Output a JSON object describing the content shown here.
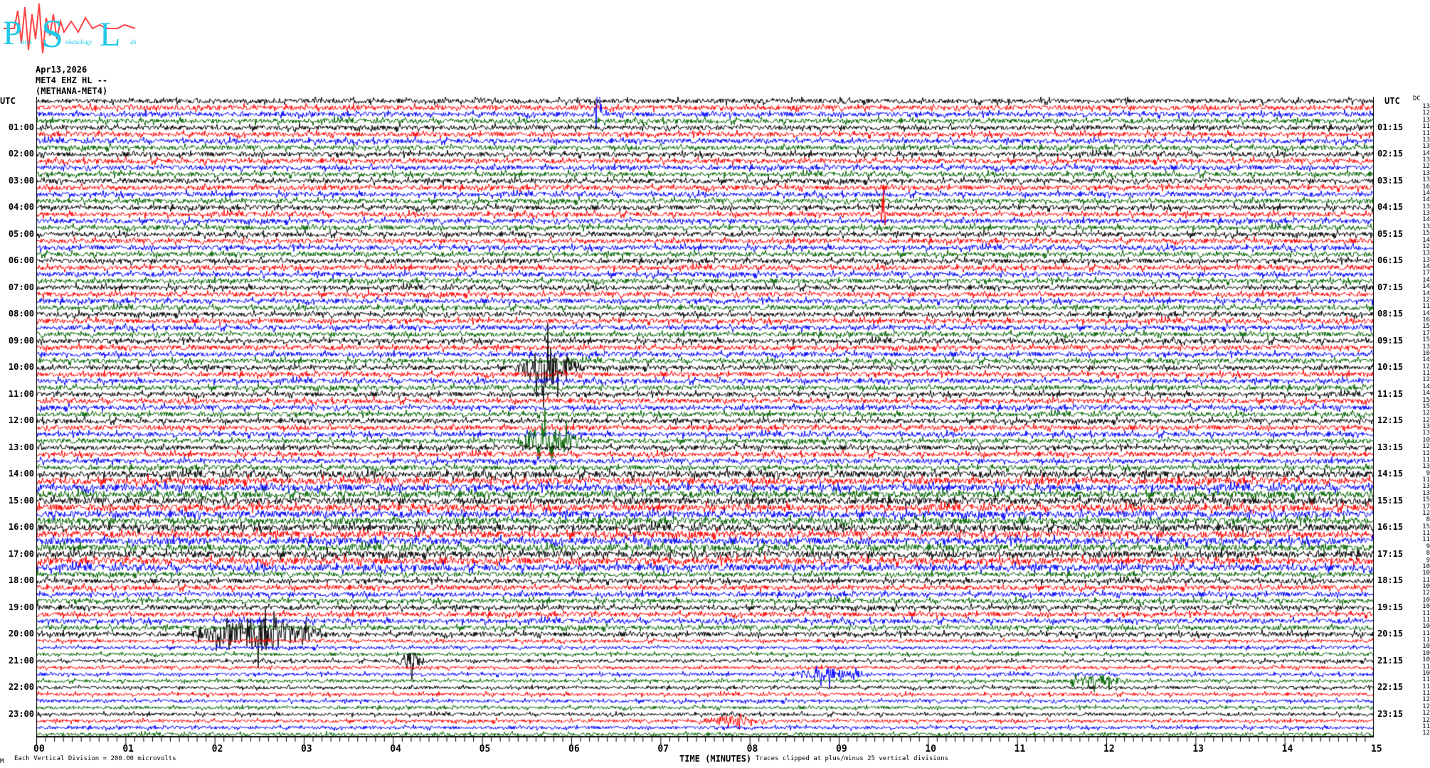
{
  "logo": {
    "text": "Patras Seismology Lab",
    "letters": [
      "P",
      "S",
      "L"
    ],
    "sub": [
      "atras",
      "eismology",
      "ab"
    ],
    "color": "#22c8e8",
    "wave_color": "#ff4444"
  },
  "header": {
    "date": "Apr13,2026",
    "channel": "MET4 EHZ HL --",
    "station": "(METHANA-MET4)"
  },
  "footer": {
    "scale_note": "Each Vertical Division =  200.00 microvolts",
    "clip_note": "Traces clipped at plus/minus 25 vertical divisions",
    "corner_mark": "M"
  },
  "chart_data": {
    "type": "line",
    "subtype": "helicorder",
    "xlabel": "TIME (MINUTES)",
    "x_ticks": [
      "00",
      "01",
      "02",
      "03",
      "04",
      "05",
      "06",
      "07",
      "08",
      "09",
      "10",
      "11",
      "12",
      "13",
      "14",
      "15"
    ],
    "xlim": [
      0,
      15
    ],
    "left_label_header": "UTC",
    "right_label_header": "UTC",
    "left_labels": [
      "01:00",
      "02:00",
      "03:00",
      "04:00",
      "05:00",
      "06:00",
      "07:00",
      "08:00",
      "09:00",
      "10:00",
      "11:00",
      "12:00",
      "13:00",
      "14:00",
      "15:00",
      "16:00",
      "17:00",
      "18:00",
      "19:00",
      "20:00",
      "21:00",
      "22:00",
      "23:00"
    ],
    "right_labels": [
      "01:15",
      "02:15",
      "03:15",
      "04:15",
      "05:15",
      "06:15",
      "07:15",
      "08:15",
      "09:15",
      "10:15",
      "11:15",
      "12:15",
      "13:15",
      "14:15",
      "15:15",
      "16:15",
      "17:15",
      "18:15",
      "19:15",
      "20:15",
      "21:15",
      "22:15",
      "23:15"
    ],
    "trace_colors": [
      "#000000",
      "#ff0000",
      "#0000ff",
      "#006400"
    ],
    "dc_header": "DC",
    "dc_values": [
      13,
      12,
      13,
      11,
      11,
      13,
      13,
      14,
      13,
      12,
      13,
      13,
      16,
      14,
      14,
      13,
      13,
      14,
      13,
      15,
      14,
      12,
      13,
      13,
      14,
      17,
      14,
      14,
      14,
      12,
      11,
      14,
      16,
      15,
      17,
      15,
      13,
      16,
      14,
      12,
      11,
      12,
      14,
      14,
      15,
      15,
      12,
      12,
      13,
      13,
      10,
      12,
      12,
      11,
      13,
      9,
      11,
      13,
      13,
      15,
      17,
      12,
      8,
      15,
      11,
      11,
      9,
      8,
      9,
      10,
      10,
      11,
      10,
      12,
      10,
      10,
      11,
      11,
      10,
      11,
      11,
      10,
      10,
      10,
      11,
      10,
      11,
      11,
      11,
      12,
      12,
      12,
      12,
      11,
      12
    ]
  }
}
